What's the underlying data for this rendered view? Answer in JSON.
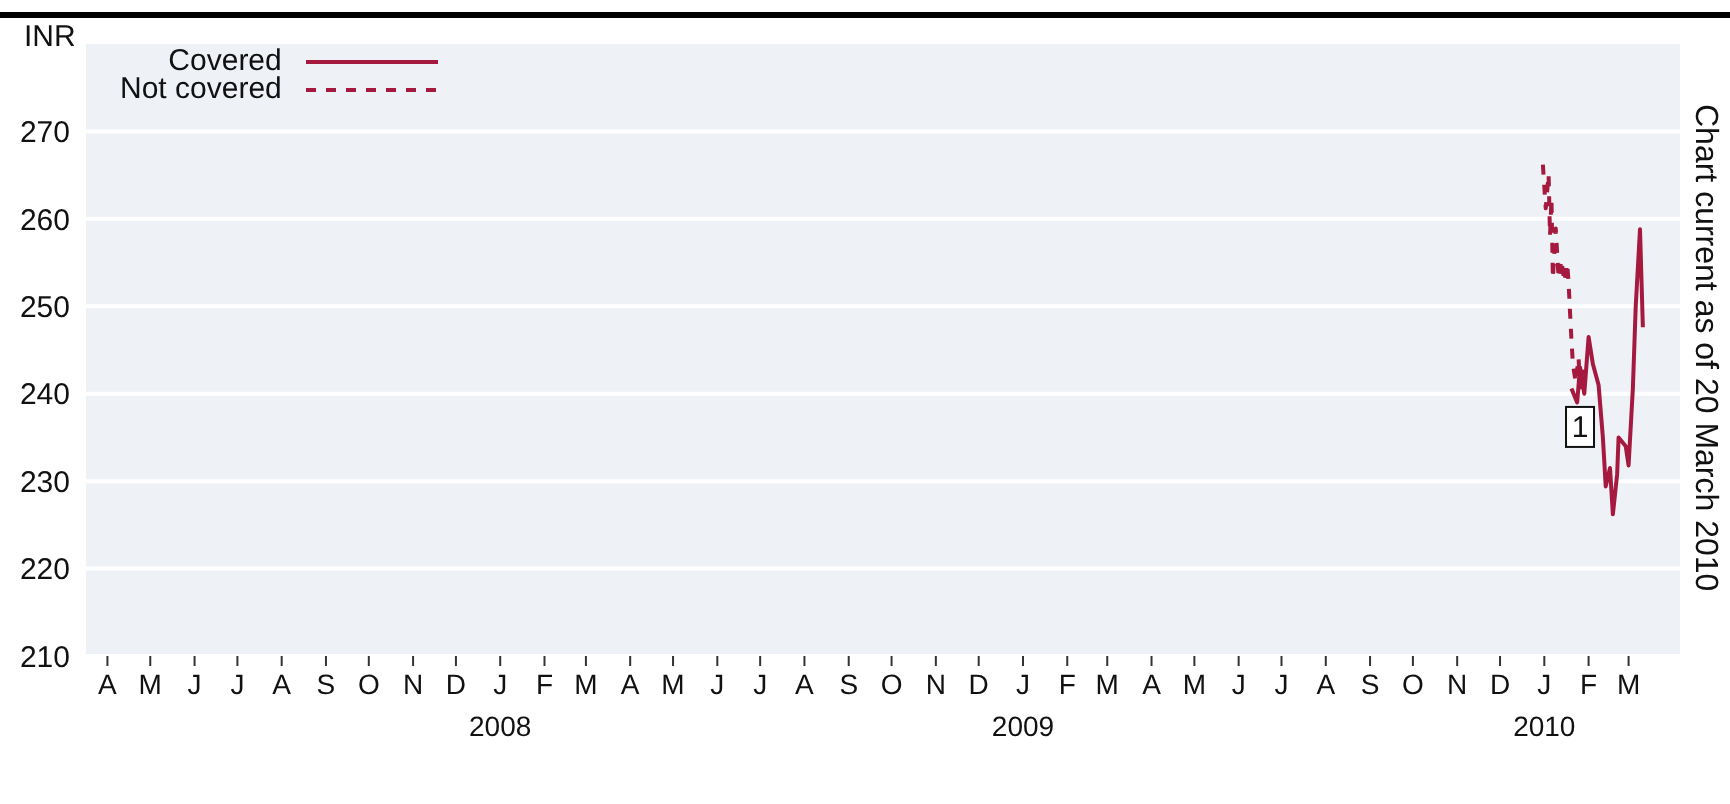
{
  "chart_data": {
    "type": "line",
    "ylabel": "INR",
    "legend": "top left",
    "grid": "y",
    "xlim": [
      "2007-03-17",
      "2010-04-06"
    ],
    "xticks": [
      {
        "value": "2007-04-01",
        "label": "A"
      },
      {
        "value": "2007-05-01",
        "label": "M"
      },
      {
        "value": "2007-06-01",
        "label": "J"
      },
      {
        "value": "2007-07-01",
        "label": "J"
      },
      {
        "value": "2007-08-01",
        "label": "A"
      },
      {
        "value": "2007-09-01",
        "label": "S"
      },
      {
        "value": "2007-10-01",
        "label": "O"
      },
      {
        "value": "2007-11-01",
        "label": "N"
      },
      {
        "value": "2007-12-01",
        "label": "D"
      },
      {
        "value": "2008-01-01",
        "label": "J\n2008"
      },
      {
        "value": "2008-02-01",
        "label": "F"
      },
      {
        "value": "2008-03-01",
        "label": "M"
      },
      {
        "value": "2008-04-01",
        "label": "A"
      },
      {
        "value": "2008-05-01",
        "label": "M"
      },
      {
        "value": "2008-06-01",
        "label": "J"
      },
      {
        "value": "2008-07-01",
        "label": "J"
      },
      {
        "value": "2008-08-01",
        "label": "A"
      },
      {
        "value": "2008-09-01",
        "label": "S"
      },
      {
        "value": "2008-10-01",
        "label": "O"
      },
      {
        "value": "2008-11-01",
        "label": "N"
      },
      {
        "value": "2008-12-01",
        "label": "D"
      },
      {
        "value": "2009-01-01",
        "label": "J\n2009"
      },
      {
        "value": "2009-02-01",
        "label": "F"
      },
      {
        "value": "2009-03-01",
        "label": "M"
      },
      {
        "value": "2009-04-01",
        "label": "A"
      },
      {
        "value": "2009-05-01",
        "label": "M"
      },
      {
        "value": "2009-06-01",
        "label": "J"
      },
      {
        "value": "2009-07-01",
        "label": "J"
      },
      {
        "value": "2009-08-01",
        "label": "A"
      },
      {
        "value": "2009-09-01",
        "label": "S"
      },
      {
        "value": "2009-10-01",
        "label": "O"
      },
      {
        "value": "2009-11-01",
        "label": "N"
      },
      {
        "value": "2009-12-01",
        "label": "D"
      },
      {
        "value": "2010-01-01",
        "label": "J\n2010"
      },
      {
        "value": "2010-02-01",
        "label": "F"
      },
      {
        "value": "2010-03-01",
        "label": "M"
      }
    ],
    "ylim": [
      210,
      280
    ],
    "yticks": [
      210,
      220,
      230,
      240,
      250,
      260,
      270
    ],
    "series": [
      {
        "name": "Covered",
        "color": "#a6193f",
        "line_style": "solid",
        "x": [
          "2010-01-20",
          "2010-01-24",
          "2010-01-26",
          "2010-01-29",
          "2010-02-01",
          "2010-02-04",
          "2010-02-08",
          "2010-02-11",
          "2010-02-13",
          "2010-02-16",
          "2010-02-18",
          "2010-02-21",
          "2010-02-22",
          "2010-02-27",
          "2010-03-01",
          "2010-03-04",
          "2010-03-06",
          "2010-03-09",
          "2010-03-11"
        ],
        "values": [
          240.6,
          239,
          243,
          240,
          246.5,
          243.4,
          241,
          235,
          229.4,
          231.5,
          226.2,
          230.8,
          235,
          234,
          231.8,
          240.6,
          250,
          258.8,
          247.6
        ]
      },
      {
        "name": "Not covered",
        "color": "#a6193f",
        "line_style": "dashed",
        "x": [
          "2009-12-31",
          "2010-01-02",
          "2010-01-04",
          "2010-01-05",
          "2010-01-06",
          "2010-01-07",
          "2010-01-09",
          "2010-01-11",
          "2010-01-13",
          "2010-01-15",
          "2010-01-17",
          "2010-01-18",
          "2010-01-19",
          "2010-01-20",
          "2010-01-21",
          "2010-01-23",
          "2010-01-25",
          "2010-01-26",
          "2010-01-28"
        ],
        "values": [
          266.2,
          261.2,
          265.1,
          258.1,
          262.3,
          253.2,
          258.9,
          253.2,
          255.3,
          252.8,
          254.9,
          252.8,
          249.3,
          246.2,
          243.4,
          241.3,
          244.1,
          240.5,
          243
        ]
      }
    ],
    "annotations": [
      "Chart current as of 20 March 2010",
      {
        "text": "1",
        "x": "2010-01-26",
        "y": 236.2
      }
    ]
  }
}
